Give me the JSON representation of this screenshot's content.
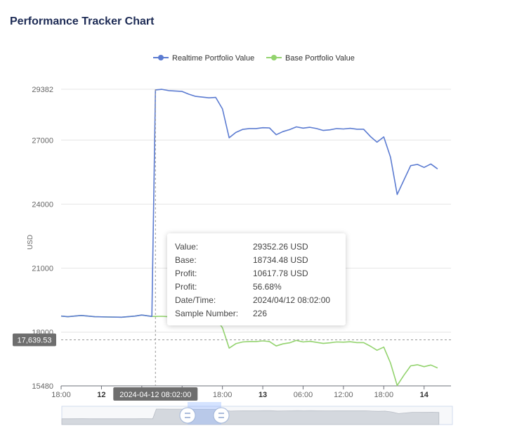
{
  "title": "Performance Tracker Chart",
  "colors": {
    "realtime": "#5b7bd1",
    "base": "#93d36e",
    "axis": "#666666",
    "grid": "#e6e6e6",
    "badge": "#6e6e6e"
  },
  "chart_data": {
    "type": "line",
    "title": "Performance Tracker Chart",
    "ylabel": "USD",
    "xlabel": "",
    "ylim": [
      15480,
      29382
    ],
    "y_ticks": [
      15480,
      18000,
      21000,
      24000,
      27000,
      29382
    ],
    "x_range": [
      "2024-04-11 18:00",
      "2024-04-14 04:00"
    ],
    "x_ticks": [
      {
        "label": "18:00",
        "t": "2024-04-11 18:00",
        "bold": false
      },
      {
        "label": "12",
        "t": "2024-04-12 00:00",
        "bold": true
      },
      {
        "label": "06:00",
        "t": "2024-04-12 06:00",
        "bold": false
      },
      {
        "label": "12:00",
        "t": "2024-04-12 12:00",
        "bold": false
      },
      {
        "label": "18:00",
        "t": "2024-04-12 18:00",
        "bold": false
      },
      {
        "label": "13",
        "t": "2024-04-13 00:00",
        "bold": true
      },
      {
        "label": "06:00",
        "t": "2024-04-13 06:00",
        "bold": false
      },
      {
        "label": "12:00",
        "t": "2024-04-13 12:00",
        "bold": false
      },
      {
        "label": "18:00",
        "t": "2024-04-13 18:00",
        "bold": false
      },
      {
        "label": "14",
        "t": "2024-04-14 00:00",
        "bold": true
      }
    ],
    "legend": "top-center",
    "grid": true,
    "series": [
      {
        "name": "Realtime Portfolio Value",
        "points": [
          [
            "2024-04-11 18:00",
            18750
          ],
          [
            "2024-04-11 19:00",
            18720
          ],
          [
            "2024-04-11 21:00",
            18780
          ],
          [
            "2024-04-11 23:00",
            18720
          ],
          [
            "2024-04-12 01:00",
            18710
          ],
          [
            "2024-04-12 03:00",
            18700
          ],
          [
            "2024-04-12 05:00",
            18750
          ],
          [
            "2024-04-12 06:00",
            18800
          ],
          [
            "2024-04-12 07:30",
            18734
          ],
          [
            "2024-04-12 08:02",
            29352
          ],
          [
            "2024-04-12 09:00",
            29380
          ],
          [
            "2024-04-12 10:00",
            29320
          ],
          [
            "2024-04-12 12:00",
            29280
          ],
          [
            "2024-04-12 13:00",
            29150
          ],
          [
            "2024-04-12 14:00",
            29050
          ],
          [
            "2024-04-12 16:00",
            28980
          ],
          [
            "2024-04-12 17:00",
            29000
          ],
          [
            "2024-04-12 18:00",
            28460
          ],
          [
            "2024-04-12 19:00",
            27110
          ],
          [
            "2024-04-12 20:00",
            27360
          ],
          [
            "2024-04-12 21:00",
            27500
          ],
          [
            "2024-04-12 22:00",
            27540
          ],
          [
            "2024-04-12 23:00",
            27540
          ],
          [
            "2024-04-13 00:00",
            27580
          ],
          [
            "2024-04-13 01:00",
            27570
          ],
          [
            "2024-04-13 02:00",
            27250
          ],
          [
            "2024-04-13 03:00",
            27400
          ],
          [
            "2024-04-13 04:00",
            27490
          ],
          [
            "2024-04-13 05:00",
            27620
          ],
          [
            "2024-04-13 06:00",
            27560
          ],
          [
            "2024-04-13 07:00",
            27600
          ],
          [
            "2024-04-13 08:00",
            27540
          ],
          [
            "2024-04-13 09:00",
            27450
          ],
          [
            "2024-04-13 10:00",
            27480
          ],
          [
            "2024-04-13 11:00",
            27540
          ],
          [
            "2024-04-13 12:00",
            27520
          ],
          [
            "2024-04-13 13:00",
            27550
          ],
          [
            "2024-04-13 14:00",
            27510
          ],
          [
            "2024-04-13 15:00",
            27510
          ],
          [
            "2024-04-13 16:00",
            27170
          ],
          [
            "2024-04-13 17:00",
            26900
          ],
          [
            "2024-04-13 18:00",
            27150
          ],
          [
            "2024-04-13 19:00",
            26200
          ],
          [
            "2024-04-13 20:00",
            24450
          ],
          [
            "2024-04-13 21:00",
            25130
          ],
          [
            "2024-04-13 22:00",
            25800
          ],
          [
            "2024-04-13 23:00",
            25860
          ],
          [
            "2024-04-14 00:00",
            25720
          ],
          [
            "2024-04-14 01:00",
            25880
          ],
          [
            "2024-04-14 02:00",
            25650
          ]
        ]
      },
      {
        "name": "Base Portfolio Value",
        "points": [
          [
            "2024-04-11 18:00",
            18750
          ],
          [
            "2024-04-11 19:00",
            18720
          ],
          [
            "2024-04-11 21:00",
            18780
          ],
          [
            "2024-04-11 23:00",
            18720
          ],
          [
            "2024-04-12 01:00",
            18710
          ],
          [
            "2024-04-12 03:00",
            18700
          ],
          [
            "2024-04-12 05:00",
            18750
          ],
          [
            "2024-04-12 06:00",
            18800
          ],
          [
            "2024-04-12 07:30",
            18734
          ],
          [
            "2024-04-12 08:02",
            18734
          ],
          [
            "2024-04-12 09:00",
            18740
          ],
          [
            "2024-04-12 10:00",
            18720
          ],
          [
            "2024-04-12 12:00",
            18700
          ],
          [
            "2024-04-12 14:00",
            18680
          ],
          [
            "2024-04-12 17:00",
            18660
          ],
          [
            "2024-04-12 18:00",
            18200
          ],
          [
            "2024-04-12 19:00",
            17250
          ],
          [
            "2024-04-12 20:00",
            17460
          ],
          [
            "2024-04-12 21:00",
            17540
          ],
          [
            "2024-04-12 22:00",
            17560
          ],
          [
            "2024-04-12 23:00",
            17560
          ],
          [
            "2024-04-13 00:00",
            17590
          ],
          [
            "2024-04-13 01:00",
            17560
          ],
          [
            "2024-04-13 02:00",
            17350
          ],
          [
            "2024-04-13 03:00",
            17450
          ],
          [
            "2024-04-13 04:00",
            17500
          ],
          [
            "2024-04-13 05:00",
            17610
          ],
          [
            "2024-04-13 06:00",
            17540
          ],
          [
            "2024-04-13 07:00",
            17570
          ],
          [
            "2024-04-13 08:00",
            17520
          ],
          [
            "2024-04-13 09:00",
            17470
          ],
          [
            "2024-04-13 10:00",
            17500
          ],
          [
            "2024-04-13 11:00",
            17540
          ],
          [
            "2024-04-13 12:00",
            17530
          ],
          [
            "2024-04-13 13:00",
            17550
          ],
          [
            "2024-04-13 14:00",
            17510
          ],
          [
            "2024-04-13 15:00",
            17510
          ],
          [
            "2024-04-13 16:00",
            17340
          ],
          [
            "2024-04-13 17:00",
            17150
          ],
          [
            "2024-04-13 18:00",
            17300
          ],
          [
            "2024-04-13 19:00",
            16550
          ],
          [
            "2024-04-13 20:00",
            15500
          ],
          [
            "2024-04-13 21:00",
            15980
          ],
          [
            "2024-04-13 22:00",
            16420
          ],
          [
            "2024-04-13 23:00",
            16470
          ],
          [
            "2024-04-14 00:00",
            16380
          ],
          [
            "2024-04-14 01:00",
            16460
          ],
          [
            "2024-04-14 02:00",
            16320
          ]
        ]
      }
    ],
    "tooltip": {
      "rows": [
        {
          "key": "Value:",
          "value": "29352.26 USD"
        },
        {
          "key": "Base:",
          "value": "18734.48 USD"
        },
        {
          "key": "Profit:",
          "value": "10617.78 USD"
        },
        {
          "key": "Profit:",
          "value": "56.68%"
        },
        {
          "key": "Date/Time:",
          "value": "2024/04/12 08:02:00"
        },
        {
          "key": "Sample Number:",
          "value": "226"
        }
      ]
    },
    "crosshair": {
      "x_label": "2024-04-12 08:02:00",
      "x": "2024-04-12 08:02",
      "y_label": "17,639.53",
      "y": 17639.53
    }
  }
}
